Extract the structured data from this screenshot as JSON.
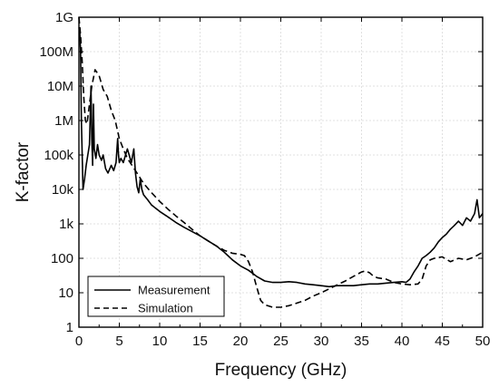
{
  "chart_data": {
    "type": "line",
    "title": "",
    "xlabel": "Frequency (GHz)",
    "ylabel": "K-factor",
    "xlim": [
      0,
      50
    ],
    "ylim": [
      1,
      1000000000
    ],
    "yscale": "log",
    "grid": true,
    "legend_position": "bottom-left",
    "x_ticks": [
      0,
      5,
      10,
      15,
      20,
      25,
      30,
      35,
      40,
      45,
      50
    ],
    "x_tick_labels": [
      "0",
      "5",
      "10",
      "15",
      "20",
      "25",
      "30",
      "35",
      "40",
      "45",
      "50"
    ],
    "y_ticks": [
      1,
      10,
      100,
      1000,
      10000,
      100000,
      1000000,
      10000000,
      100000000,
      1000000000
    ],
    "y_tick_labels": [
      "1",
      "10",
      "100",
      "1k",
      "10k",
      "100k",
      "1M",
      "10M",
      "100M",
      "1G"
    ],
    "series": [
      {
        "name": "Measurement",
        "style": "solid",
        "color": "#000000",
        "x": [
          0,
          0.1,
          0.2,
          0.3,
          0.5,
          0.7,
          0.9,
          1.1,
          1.3,
          1.5,
          1.6,
          1.7,
          1.8,
          1.9,
          2.1,
          2.3,
          2.5,
          2.8,
          3.0,
          3.3,
          3.6,
          4.0,
          4.3,
          4.6,
          4.8,
          4.9,
          5.0,
          5.2,
          5.5,
          6.0,
          6.5,
          6.8,
          7.0,
          7.2,
          7.4,
          7.6,
          7.8,
          8.0,
          8.5,
          9,
          10,
          11,
          12,
          13,
          14,
          15,
          16,
          17,
          18,
          19,
          20,
          21,
          22,
          23,
          24,
          25,
          26,
          27,
          28,
          29,
          30,
          31,
          32,
          33,
          34,
          35,
          36,
          37,
          38,
          39,
          40,
          40.5,
          41,
          41.5,
          42,
          42.5,
          43,
          43.5,
          44,
          44.5,
          45,
          45.5,
          46,
          46.5,
          47,
          47.5,
          48,
          48.5,
          49,
          49.3,
          49.6,
          50
        ],
        "y": [
          500000000,
          400000000,
          100000000,
          1000000,
          10000,
          20000,
          50000,
          100000,
          200000,
          10000000,
          300000,
          50000,
          3000000,
          150000,
          80000,
          200000,
          100000,
          70000,
          100000,
          40000,
          30000,
          50000,
          35000,
          60000,
          300000,
          100000,
          60000,
          80000,
          60000,
          150000,
          60000,
          150000,
          30000,
          12000,
          8000,
          20000,
          10000,
          7000,
          5000,
          3500,
          2300,
          1600,
          1100,
          800,
          600,
          450,
          320,
          230,
          150,
          90,
          60,
          45,
          30,
          22,
          20,
          20,
          21,
          20,
          18,
          17,
          16,
          15,
          16,
          16,
          16,
          17,
          18,
          18,
          19,
          20,
          21,
          20,
          25,
          40,
          60,
          100,
          120,
          150,
          200,
          300,
          400,
          500,
          700,
          900,
          1200,
          900,
          1500,
          1200,
          2000,
          5000,
          1500,
          2000
        ]
      },
      {
        "name": "Simulation",
        "style": "dashed",
        "color": "#000000",
        "x": [
          0,
          0.2,
          0.4,
          0.6,
          0.8,
          1.0,
          1.3,
          1.6,
          2.0,
          2.5,
          3.0,
          3.5,
          4.0,
          4.5,
          5.0,
          5.5,
          6,
          7,
          8,
          9,
          10,
          11,
          12,
          13,
          14,
          15,
          16,
          17,
          18,
          19,
          20,
          20.5,
          21,
          21.5,
          22,
          22.5,
          23,
          24,
          25,
          26,
          27,
          28,
          29,
          30,
          31,
          32,
          33,
          34,
          35,
          35.5,
          36,
          36.5,
          37,
          38,
          39,
          40,
          41,
          42,
          42.5,
          43,
          43.5,
          44,
          45,
          46,
          47,
          48,
          49,
          50
        ],
        "y": [
          1000000000,
          300000000,
          50000000,
          5000000,
          1000000,
          800000,
          3000000,
          10000000,
          30000000,
          20000000,
          8000000,
          5000000,
          2000000,
          1000000,
          300000,
          150000,
          80000,
          35000,
          15000,
          8000,
          4500,
          2700,
          1700,
          1100,
          700,
          450,
          320,
          230,
          170,
          140,
          130,
          120,
          80,
          40,
          15,
          6,
          4.5,
          3.8,
          3.8,
          4.2,
          5,
          6,
          8,
          10,
          13,
          17,
          22,
          30,
          40,
          43,
          38,
          30,
          27,
          25,
          20,
          18,
          17,
          18,
          25,
          60,
          90,
          100,
          110,
          80,
          100,
          90,
          110,
          150
        ]
      }
    ]
  }
}
